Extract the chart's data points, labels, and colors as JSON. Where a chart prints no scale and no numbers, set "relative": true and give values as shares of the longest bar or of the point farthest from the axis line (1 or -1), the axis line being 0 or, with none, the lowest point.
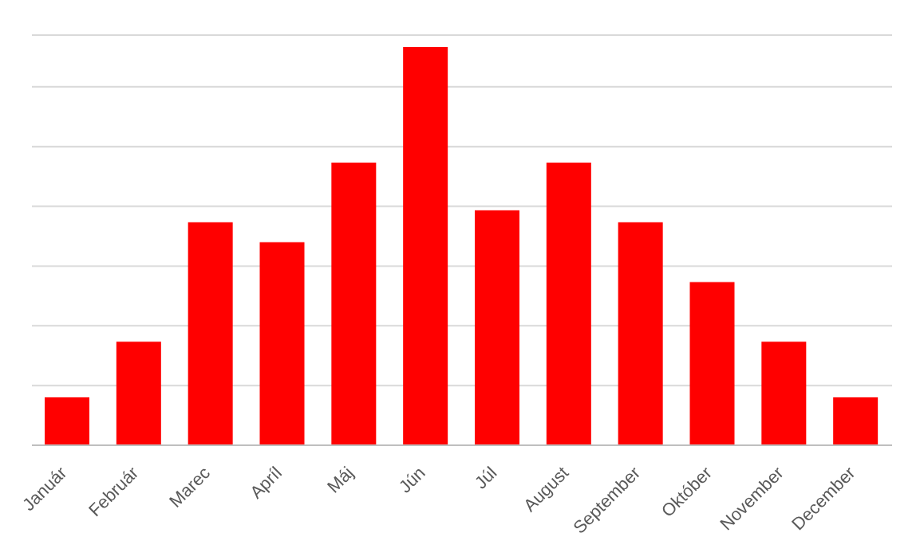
{
  "chart_data": {
    "type": "bar",
    "relative": true,
    "grid": "y",
    "categories": [
      "Január",
      "Február",
      "Marec",
      "Apríl",
      "Máj",
      "Jún",
      "Júl",
      "August",
      "September",
      "Október",
      "November",
      "December"
    ],
    "values": [
      0.12,
      0.26,
      0.56,
      0.51,
      0.71,
      1,
      0.59,
      0.71,
      0.56,
      0.41,
      0.26,
      0.12
    ],
    "color": "#ff0000"
  }
}
